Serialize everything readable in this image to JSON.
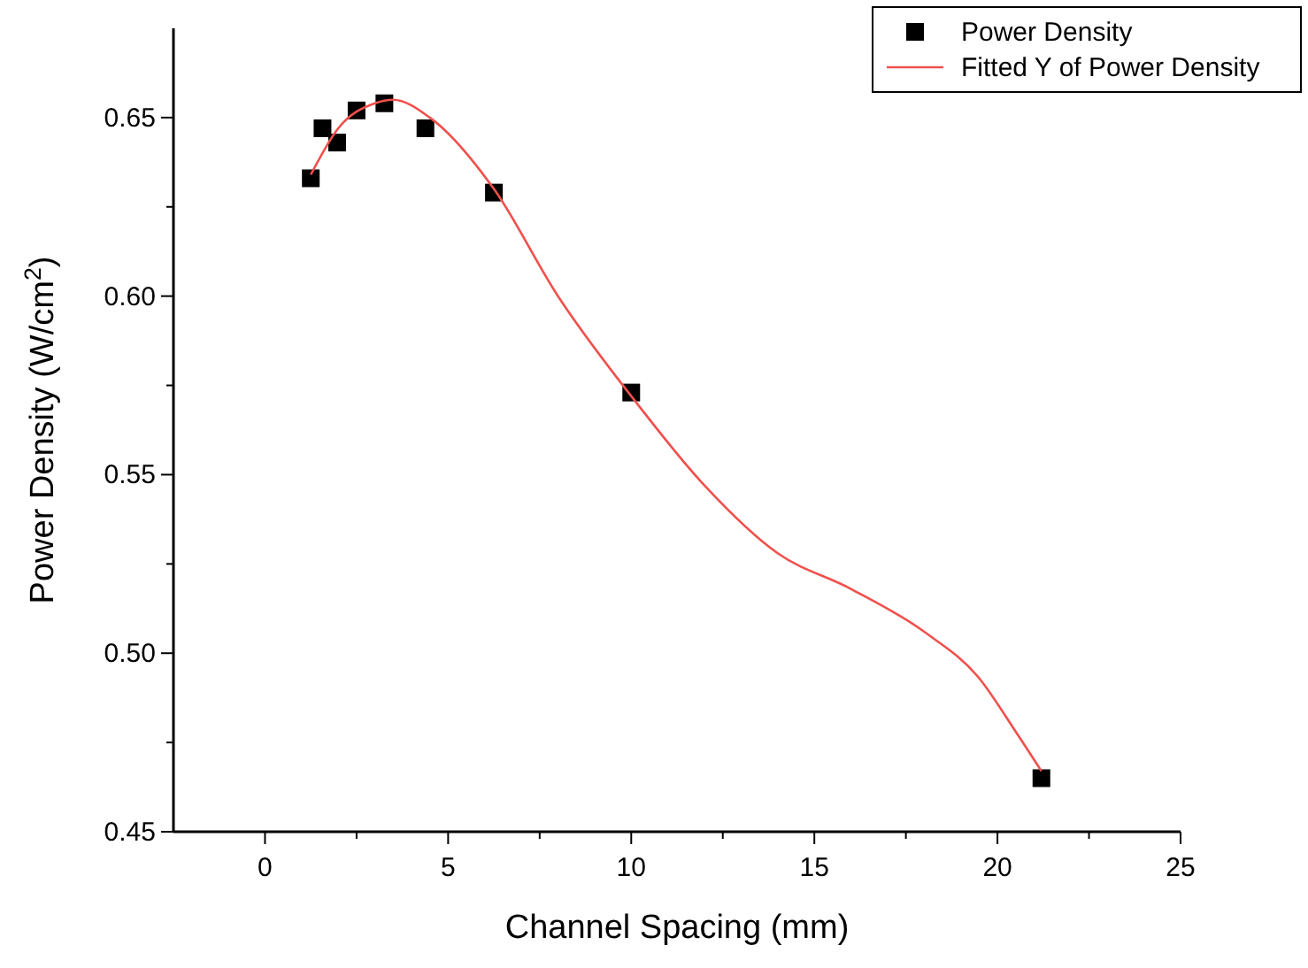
{
  "chart_data": {
    "type": "scatter",
    "xlabel": "Channel Spacing (mm)",
    "ylabel": "Power Density (W/cm$^{2}$)",
    "xlim": [
      -2.5,
      25
    ],
    "xticks": [
      0,
      5,
      10,
      15,
      20,
      25
    ],
    "ylim": [
      0.45,
      0.675
    ],
    "yticks": [
      0.45,
      {
        "value": 0.5,
        "label": "0.50"
      },
      0.55,
      {
        "value": 0.6,
        "label": "0.60"
      },
      0.65
    ],
    "legend": "top right",
    "grid": false,
    "series": [
      {
        "name": "Power Density",
        "marker": "square",
        "color": "#000000",
        "x": [
          1.25,
          1.57,
          1.97,
          2.5,
          3.26,
          4.38,
          6.25,
          10,
          21.2
        ],
        "values": [
          0.633,
          0.647,
          0.643,
          0.652,
          0.654,
          0.647,
          0.629,
          0.573,
          0.465
        ]
      },
      {
        "name": "Fitted Y of Power Density",
        "type": "line",
        "color": "#f0504c",
        "line_style": "solid",
        "x": [
          1.25,
          2,
          3,
          3.5,
          4.5,
          6.25,
          8,
          10,
          12,
          14,
          16,
          18,
          19.5,
          20.5,
          21.2
        ],
        "values": [
          0.634,
          0.647,
          0.654,
          0.655,
          0.65,
          0.63,
          0.6,
          0.572,
          0.547,
          0.528,
          0.518,
          0.506,
          0.493,
          0.478,
          0.467
        ]
      }
    ]
  }
}
